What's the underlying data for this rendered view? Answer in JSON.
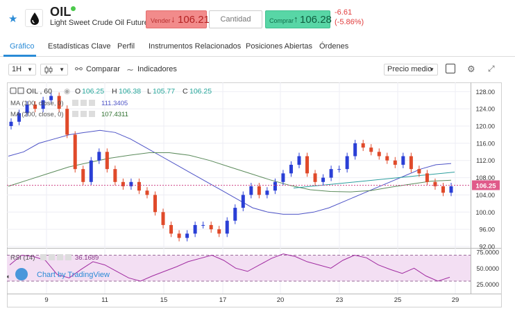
{
  "header": {
    "symbol": "OIL",
    "name": "Light Sweet Crude Oil Futures",
    "sell_label": "Vender",
    "sell_price": "106.21",
    "quantity_placeholder": "Cantidad",
    "buy_label": "Comprar",
    "buy_price": "106.28",
    "change_abs": "-6.61",
    "change_pct": "(-5.86%)",
    "colors": {
      "sell": "#f28b8b",
      "buy": "#58d6a6",
      "negative": "#e03b3b",
      "accent": "#2a8bd6"
    }
  },
  "tabs": [
    {
      "label": "Gráfico",
      "active": true
    },
    {
      "label": "Estadísticas Clave",
      "active": false
    },
    {
      "label": "Perfil",
      "active": false
    },
    {
      "label": "Instrumentos Relacionados",
      "active": false
    },
    {
      "label": "Posiciones Abiertas",
      "active": false
    },
    {
      "label": "Órdenes",
      "active": false
    }
  ],
  "toolbar": {
    "interval": "1H",
    "compare": "Comparar",
    "indicators": "Indicadores",
    "price_mode": "Precio medio"
  },
  "legend": {
    "symbol_line": "OIL , 60",
    "o_label": "O",
    "o": "106.25",
    "h_label": "H",
    "h": "106.38",
    "l_label": "L",
    "l": "105.77",
    "c_label": "C",
    "c": "106.25",
    "ma100_label": "MA (100, close, 0)",
    "ma100_value": "111.3405",
    "ma200_label": "MA (200, close, 0)",
    "ma200_value": "107.4311",
    "rsi_label": "RSI (14)",
    "rsi_value": "36.1689",
    "watermark": "Chart by TradingView"
  },
  "chart_data": {
    "type": "candlestick",
    "y_ticks": [
      "128.00",
      "124.00",
      "120.00",
      "116.00",
      "112.00",
      "108.00",
      "104.00",
      "100.00",
      "96.00",
      "92.00"
    ],
    "ylim": [
      92,
      129.5
    ],
    "x_ticks": [
      "9",
      "11",
      "15",
      "17",
      "20",
      "23",
      "25",
      "29"
    ],
    "last_price": "106.25",
    "rsi_ticks": [
      "75.0000",
      "50.0000",
      "25.0000"
    ],
    "rsi_ylim": [
      14,
      78
    ],
    "close": [
      121,
      123,
      125,
      124,
      126,
      127,
      124,
      118,
      110,
      107,
      112,
      114,
      110,
      107,
      106,
      107,
      105,
      104,
      100,
      97,
      95,
      94,
      95,
      97,
      97,
      96,
      95,
      98,
      101,
      104,
      106,
      104,
      105,
      107,
      109,
      111,
      113,
      109,
      107,
      108,
      110,
      110,
      113,
      116,
      115,
      114,
      113,
      112,
      111,
      113,
      110,
      109,
      107,
      106,
      104.5,
      106
    ],
    "ma100": [
      113,
      114,
      116,
      117,
      118,
      118.5,
      119,
      118.5,
      117,
      115,
      113,
      111,
      109,
      107,
      105,
      103,
      101,
      100,
      99.5,
      99.5,
      100,
      101,
      102.5,
      104,
      105.5,
      107,
      108.5,
      110,
      111,
      111.3
    ],
    "ma200": [
      106,
      107.5,
      109,
      110.5,
      111.5,
      112.5,
      113.2,
      113.8,
      113.8,
      113.2,
      112,
      110.5,
      109,
      107.5,
      106.2,
      105.2,
      104.8,
      104.7,
      105,
      105.8,
      106.5,
      107.2,
      107.4
    ],
    "rsi": [
      55,
      70,
      68,
      62,
      40,
      35,
      48,
      60,
      55,
      45,
      35,
      30,
      38,
      45,
      52,
      60,
      65,
      70,
      62,
      50,
      45,
      55,
      65,
      72,
      68,
      60,
      55,
      50,
      62,
      70,
      66,
      55,
      48,
      42,
      50,
      38,
      30,
      36
    ]
  }
}
